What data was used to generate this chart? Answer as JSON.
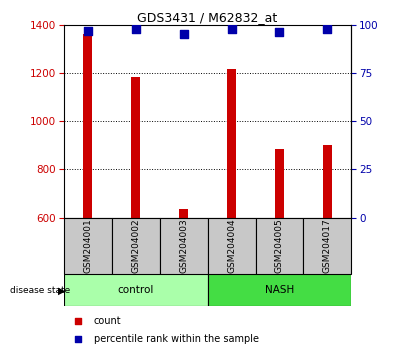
{
  "title": "GDS3431 / M62832_at",
  "samples": [
    "GSM204001",
    "GSM204002",
    "GSM204003",
    "GSM204004",
    "GSM204005",
    "GSM204017"
  ],
  "counts": [
    1360,
    1185,
    635,
    1215,
    885,
    900
  ],
  "percentiles": [
    97,
    98,
    95,
    98,
    96,
    98
  ],
  "ylim_left": [
    600,
    1400
  ],
  "ylim_right": [
    0,
    100
  ],
  "yticks_left": [
    600,
    800,
    1000,
    1200,
    1400
  ],
  "yticks_right": [
    0,
    25,
    50,
    75,
    100
  ],
  "bar_color": "#CC0000",
  "dot_color": "#0000AA",
  "background_color": "#C8C8C8",
  "ctrl_color": "#AAFFAA",
  "nash_color": "#44DD44",
  "bar_width": 0.18,
  "dot_size": 30,
  "title_fontsize": 9,
  "tick_fontsize": 7.5,
  "label_fontsize": 7.5,
  "sample_fontsize": 6.5
}
